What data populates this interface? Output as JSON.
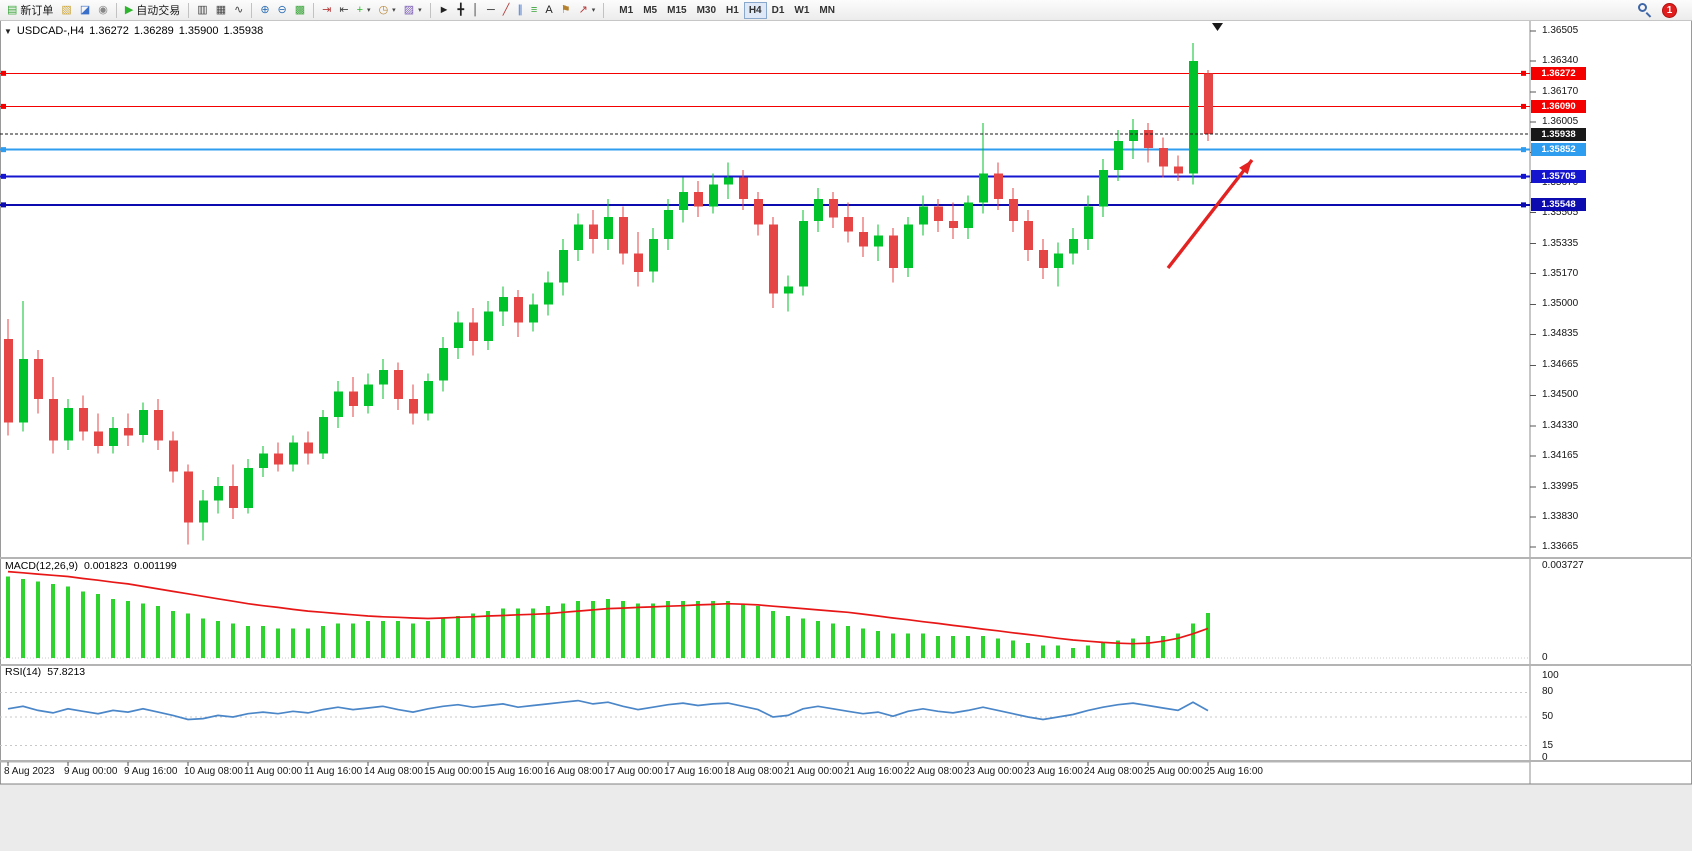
{
  "toolbar": {
    "notification_count": "1",
    "items": [
      {
        "t": "btn",
        "name": "new-order-button",
        "glyph": "▤",
        "gc": "#3aa53a",
        "label": "新订单"
      },
      {
        "t": "btn",
        "name": "charts-button",
        "glyph": "▧",
        "gc": "#c9a43a"
      },
      {
        "t": "btn",
        "name": "profiles-button",
        "glyph": "◪",
        "gc": "#3a6fc9"
      },
      {
        "t": "btn",
        "name": "navigator-button",
        "glyph": "◉",
        "gc": "#888888"
      },
      {
        "t": "sep"
      },
      {
        "t": "btn",
        "name": "auto-trading-button",
        "glyph": "▶",
        "gc": "#2db52d",
        "label": "自动交易"
      },
      {
        "t": "sep"
      },
      {
        "t": "btn",
        "name": "bar-chart-button",
        "glyph": "▥",
        "gc": "#444444"
      },
      {
        "t": "btn",
        "name": "candlestick-chart-button",
        "glyph": "▦",
        "gc": "#444444"
      },
      {
        "t": "btn",
        "name": "line-chart-button",
        "glyph": "∿",
        "gc": "#444444"
      },
      {
        "t": "sep"
      },
      {
        "t": "btn",
        "name": "zoom-in-button",
        "glyph": "⊕",
        "gc": "#2d6fb5"
      },
      {
        "t": "btn",
        "name": "zoom-out-button",
        "glyph": "⊖",
        "gc": "#2d6fb5"
      },
      {
        "t": "btn",
        "name": "tile-windows-button",
        "glyph": "▩",
        "gc": "#3aa53a"
      },
      {
        "t": "sep"
      },
      {
        "t": "btn",
        "name": "auto-scroll-button",
        "glyph": "⇥",
        "gc": "#b53a3a"
      },
      {
        "t": "btn",
        "name": "chart-shift-button",
        "glyph": "⇤",
        "gc": "#444444"
      },
      {
        "t": "btn",
        "name": "indicators-button",
        "glyph": "+",
        "gc": "#2db52d",
        "dd": true
      },
      {
        "t": "btn",
        "name": "periods-button",
        "glyph": "◷",
        "gc": "#b5812d",
        "dd": true
      },
      {
        "t": "btn",
        "name": "templates-button",
        "glyph": "▨",
        "gc": "#7a5ab5",
        "dd": true
      },
      {
        "t": "sep"
      },
      {
        "t": "btn",
        "name": "cursor-button",
        "glyph": "►",
        "gc": "#222222"
      },
      {
        "t": "btn",
        "name": "crosshair-button",
        "glyph": "╋",
        "gc": "#222222"
      },
      {
        "t": "btn",
        "name": "vertical-line-button",
        "glyph": "│",
        "gc": "#222222"
      },
      {
        "t": "btn",
        "name": "horizontal-line-button",
        "glyph": "─",
        "gc": "#222222"
      },
      {
        "t": "btn",
        "name": "trendline-button",
        "glyph": "╱",
        "gc": "#b53a3a"
      },
      {
        "t": "btn",
        "name": "channel-button",
        "glyph": "∥",
        "gc": "#3a6fc9"
      },
      {
        "t": "btn",
        "name": "fibonacci-button",
        "glyph": "≡",
        "gc": "#3aa53a"
      },
      {
        "t": "btn",
        "name": "text-button",
        "glyph": "A",
        "gc": "#222222"
      },
      {
        "t": "btn",
        "name": "text-label-button",
        "glyph": "⚑",
        "gc": "#b5812d"
      },
      {
        "t": "btn",
        "name": "arrows-button",
        "glyph": "↗",
        "gc": "#b53a3a",
        "dd": true
      },
      {
        "t": "sep"
      }
    ],
    "timeframes": [
      "M1",
      "M5",
      "M15",
      "M30",
      "H1",
      "H4",
      "D1",
      "W1",
      "MN"
    ],
    "active_timeframe": "H4"
  },
  "chart_header": {
    "symbol_timeframe": "USDCAD-,H4",
    "open": "1.36272",
    "high": "1.36289",
    "low": "1.35900",
    "close": "1.35938"
  },
  "indicators_header": {
    "macd_label": "MACD(12,26,9)",
    "macd_main": "0.001823",
    "macd_signal": "0.001199",
    "rsi_label": "RSI(14)",
    "rsi_value": "57.8213"
  },
  "chart_data": {
    "type": "candlestick",
    "symbol": "USDCAD-",
    "timeframe": "H4",
    "colors": {
      "bull": "#00c22a",
      "bear": "#e54545"
    },
    "price_axis": {
      "max": 1.36505,
      "min": 1.33665,
      "labels": [
        "1.36505",
        "1.36340",
        "1.36170",
        "1.36005",
        "1.35835",
        "1.35670",
        "1.35505",
        "1.35335",
        "1.35170",
        "1.35000",
        "1.34835",
        "1.34665",
        "1.34500",
        "1.34330",
        "1.34165",
        "1.33995",
        "1.33830",
        "1.33665"
      ]
    },
    "time_labels": [
      "8 Aug 2023",
      "9 Aug 00:00",
      "9 Aug 16:00",
      "10 Aug 08:00",
      "11 Aug 00:00",
      "11 Aug 16:00",
      "14 Aug 08:00",
      "15 Aug 00:00",
      "15 Aug 16:00",
      "16 Aug 08:00",
      "17 Aug 00:00",
      "17 Aug 16:00",
      "18 Aug 08:00",
      "21 Aug 00:00",
      "21 Aug 16:00",
      "22 Aug 08:00",
      "23 Aug 00:00",
      "23 Aug 16:00",
      "24 Aug 08:00",
      "25 Aug 00:00",
      "25 Aug 16:00"
    ],
    "hlines": [
      {
        "price": 1.36272,
        "label": "1.36272",
        "color": "#f40000",
        "width": 1
      },
      {
        "price": 1.3609,
        "label": "1.36090",
        "color": "#f40000",
        "width": 1
      },
      {
        "price": 1.35938,
        "label": "1.35938",
        "color": "#181818",
        "width": 1,
        "style": "dash",
        "current": true
      },
      {
        "price": 1.35852,
        "label": "1.35852",
        "color": "#2e9df0",
        "width": 2
      },
      {
        "price": 1.35705,
        "label": "1.35705",
        "color": "#1515d0",
        "width": 2
      },
      {
        "price": 1.35548,
        "label": "1.35548",
        "color": "#0b0bb0",
        "width": 2
      }
    ],
    "candles": [
      [
        1.3481,
        1.3492,
        1.3428,
        1.3435
      ],
      [
        1.3435,
        1.3502,
        1.343,
        1.347
      ],
      [
        1.347,
        1.3475,
        1.344,
        1.3448
      ],
      [
        1.3448,
        1.346,
        1.3418,
        1.3425
      ],
      [
        1.3425,
        1.3448,
        1.342,
        1.3443
      ],
      [
        1.3443,
        1.345,
        1.3425,
        1.343
      ],
      [
        1.343,
        1.344,
        1.3418,
        1.3422
      ],
      [
        1.3422,
        1.3438,
        1.3418,
        1.3432
      ],
      [
        1.3432,
        1.344,
        1.3422,
        1.3428
      ],
      [
        1.3428,
        1.3446,
        1.3424,
        1.3442
      ],
      [
        1.3442,
        1.3448,
        1.342,
        1.3425
      ],
      [
        1.3425,
        1.343,
        1.3402,
        1.3408
      ],
      [
        1.3408,
        1.3412,
        1.3368,
        1.338
      ],
      [
        1.338,
        1.3398,
        1.337,
        1.3392
      ],
      [
        1.3392,
        1.3405,
        1.3385,
        1.34
      ],
      [
        1.34,
        1.3412,
        1.3382,
        1.3388
      ],
      [
        1.3388,
        1.3415,
        1.3385,
        1.341
      ],
      [
        1.341,
        1.3422,
        1.3405,
        1.3418
      ],
      [
        1.3418,
        1.3424,
        1.3408,
        1.3412
      ],
      [
        1.3412,
        1.3428,
        1.3408,
        1.3424
      ],
      [
        1.3424,
        1.343,
        1.3412,
        1.3418
      ],
      [
        1.3418,
        1.3442,
        1.3415,
        1.3438
      ],
      [
        1.3438,
        1.3458,
        1.3432,
        1.3452
      ],
      [
        1.3452,
        1.346,
        1.3438,
        1.3444
      ],
      [
        1.3444,
        1.3462,
        1.344,
        1.3456
      ],
      [
        1.3456,
        1.347,
        1.3448,
        1.3464
      ],
      [
        1.3464,
        1.3468,
        1.3442,
        1.3448
      ],
      [
        1.3448,
        1.3456,
        1.3434,
        1.344
      ],
      [
        1.344,
        1.3462,
        1.3436,
        1.3458
      ],
      [
        1.3458,
        1.3482,
        1.3452,
        1.3476
      ],
      [
        1.3476,
        1.3496,
        1.347,
        1.349
      ],
      [
        1.349,
        1.3498,
        1.3472,
        1.348
      ],
      [
        1.348,
        1.3502,
        1.3475,
        1.3496
      ],
      [
        1.3496,
        1.351,
        1.3488,
        1.3504
      ],
      [
        1.3504,
        1.3508,
        1.3482,
        1.349
      ],
      [
        1.349,
        1.3506,
        1.3485,
        1.35
      ],
      [
        1.35,
        1.3518,
        1.3494,
        1.3512
      ],
      [
        1.3512,
        1.3536,
        1.3505,
        1.353
      ],
      [
        1.353,
        1.355,
        1.3524,
        1.3544
      ],
      [
        1.3544,
        1.3552,
        1.3528,
        1.3536
      ],
      [
        1.3536,
        1.3558,
        1.353,
        1.3548
      ],
      [
        1.3548,
        1.3554,
        1.3522,
        1.3528
      ],
      [
        1.3528,
        1.354,
        1.351,
        1.3518
      ],
      [
        1.3518,
        1.3542,
        1.3512,
        1.3536
      ],
      [
        1.3536,
        1.3558,
        1.353,
        1.3552
      ],
      [
        1.3552,
        1.357,
        1.3545,
        1.3562
      ],
      [
        1.3562,
        1.3568,
        1.3548,
        1.3554
      ],
      [
        1.3554,
        1.3572,
        1.355,
        1.3566
      ],
      [
        1.3566,
        1.3578,
        1.3558,
        1.357
      ],
      [
        1.357,
        1.3574,
        1.3552,
        1.3558
      ],
      [
        1.3558,
        1.3562,
        1.3538,
        1.3544
      ],
      [
        1.3544,
        1.3548,
        1.3498,
        1.3506
      ],
      [
        1.3506,
        1.3516,
        1.3496,
        1.351
      ],
      [
        1.351,
        1.3552,
        1.3505,
        1.3546
      ],
      [
        1.3546,
        1.3564,
        1.354,
        1.3558
      ],
      [
        1.3558,
        1.3562,
        1.3542,
        1.3548
      ],
      [
        1.3548,
        1.3556,
        1.3534,
        1.354
      ],
      [
        1.354,
        1.3548,
        1.3526,
        1.3532
      ],
      [
        1.3532,
        1.3544,
        1.3524,
        1.3538
      ],
      [
        1.3538,
        1.3542,
        1.3512,
        1.352
      ],
      [
        1.352,
        1.3548,
        1.3515,
        1.3544
      ],
      [
        1.3544,
        1.356,
        1.3538,
        1.3554
      ],
      [
        1.3554,
        1.3558,
        1.354,
        1.3546
      ],
      [
        1.3546,
        1.3556,
        1.3536,
        1.3542
      ],
      [
        1.3542,
        1.356,
        1.3536,
        1.3556
      ],
      [
        1.3556,
        1.36,
        1.355,
        1.3572
      ],
      [
        1.3572,
        1.3578,
        1.3552,
        1.3558
      ],
      [
        1.3558,
        1.3564,
        1.354,
        1.3546
      ],
      [
        1.3546,
        1.3552,
        1.3524,
        1.353
      ],
      [
        1.353,
        1.3536,
        1.3514,
        1.352
      ],
      [
        1.352,
        1.3534,
        1.351,
        1.3528
      ],
      [
        1.3528,
        1.3542,
        1.3522,
        1.3536
      ],
      [
        1.3536,
        1.356,
        1.353,
        1.3554
      ],
      [
        1.3554,
        1.358,
        1.3548,
        1.3574
      ],
      [
        1.3574,
        1.3596,
        1.3568,
        1.359
      ],
      [
        1.359,
        1.3602,
        1.358,
        1.3596
      ],
      [
        1.3596,
        1.36,
        1.3578,
        1.3586
      ],
      [
        1.3586,
        1.3592,
        1.357,
        1.3576
      ],
      [
        1.3576,
        1.3582,
        1.3568,
        1.3572
      ],
      [
        1.3572,
        1.3644,
        1.3566,
        1.3634
      ],
      [
        1.36272,
        1.36289,
        1.359,
        1.35938
      ]
    ],
    "indicators": [
      {
        "name": "MACD",
        "params": "(12,26,9)",
        "main_value": 0.001823,
        "signal_value": 0.001199,
        "max": 0.003727,
        "axis_labels": [
          "0.003727",
          "0"
        ],
        "histogram_color": "#2ed32e",
        "signal_color": "#e81717",
        "histogram": [
          0.0033,
          0.0032,
          0.0031,
          0.003,
          0.0029,
          0.0027,
          0.0026,
          0.0024,
          0.0023,
          0.0022,
          0.0021,
          0.0019,
          0.0018,
          0.0016,
          0.0015,
          0.0014,
          0.0013,
          0.0013,
          0.0012,
          0.0012,
          0.0012,
          0.0013,
          0.0014,
          0.0014,
          0.0015,
          0.0015,
          0.0015,
          0.0014,
          0.0015,
          0.0016,
          0.0017,
          0.0018,
          0.0019,
          0.002,
          0.002,
          0.002,
          0.0021,
          0.0022,
          0.0023,
          0.0023,
          0.0024,
          0.0023,
          0.0022,
          0.0022,
          0.0023,
          0.0023,
          0.0023,
          0.0023,
          0.0023,
          0.0022,
          0.0021,
          0.0019,
          0.0017,
          0.0016,
          0.0015,
          0.0014,
          0.0013,
          0.0012,
          0.0011,
          0.001,
          0.001,
          0.001,
          0.0009,
          0.0009,
          0.0009,
          0.0009,
          0.0008,
          0.0007,
          0.0006,
          0.0005,
          0.0005,
          0.0004,
          0.0005,
          0.0006,
          0.0007,
          0.0008,
          0.0009,
          0.0009,
          0.001,
          0.0014,
          0.001823
        ],
        "signal": [
          0.0035,
          0.00345,
          0.0034,
          0.00335,
          0.0033,
          0.00322,
          0.00315,
          0.00307,
          0.003,
          0.0029,
          0.0028,
          0.0027,
          0.0026,
          0.0025,
          0.0024,
          0.0023,
          0.0022,
          0.00212,
          0.00205,
          0.00197,
          0.0019,
          0.00185,
          0.0018,
          0.00175,
          0.0017,
          0.00167,
          0.00165,
          0.00162,
          0.0016,
          0.00162,
          0.00165,
          0.00167,
          0.0017,
          0.00172,
          0.00175,
          0.00177,
          0.0018,
          0.00185,
          0.0019,
          0.00195,
          0.002,
          0.00202,
          0.00205,
          0.00207,
          0.0021,
          0.00212,
          0.00215,
          0.00217,
          0.0022,
          0.00218,
          0.00215,
          0.0021,
          0.00205,
          0.002,
          0.00195,
          0.0019,
          0.00185,
          0.00178,
          0.0017,
          0.00162,
          0.00155,
          0.00147,
          0.0014,
          0.00132,
          0.00125,
          0.00117,
          0.0011,
          0.00102,
          0.00095,
          0.00088,
          0.0008,
          0.00073,
          0.00068,
          0.00063,
          0.0006,
          0.00058,
          0.0006,
          0.00068,
          0.0008,
          0.00098,
          0.0012
        ]
      },
      {
        "name": "RSI",
        "params": "(14)",
        "current_value": 57.8213,
        "range": [
          0,
          100
        ],
        "axis_labels": [
          "100",
          "80",
          "50",
          "15",
          "0"
        ],
        "levels": [
          80,
          50,
          15
        ],
        "line_color": "#4a86c8",
        "values": [
          60,
          63,
          58,
          55,
          60,
          57,
          54,
          58,
          56,
          60,
          56,
          52,
          47,
          48,
          52,
          50,
          54,
          56,
          54,
          57,
          55,
          59,
          62,
          59,
          61,
          63,
          59,
          56,
          60,
          63,
          65,
          62,
          64,
          66,
          62,
          64,
          66,
          68,
          70,
          66,
          68,
          63,
          59,
          62,
          65,
          67,
          64,
          66,
          67,
          63,
          59,
          50,
          52,
          60,
          63,
          60,
          57,
          54,
          56,
          51,
          57,
          60,
          57,
          55,
          58,
          62,
          58,
          54,
          50,
          47,
          50,
          53,
          58,
          62,
          65,
          67,
          64,
          61,
          58,
          68,
          57.8
        ]
      }
    ],
    "annotations": [
      {
        "type": "arrow",
        "from": [
          1168,
          268
        ],
        "to": [
          1252,
          160
        ],
        "color": "#e32222"
      }
    ]
  }
}
